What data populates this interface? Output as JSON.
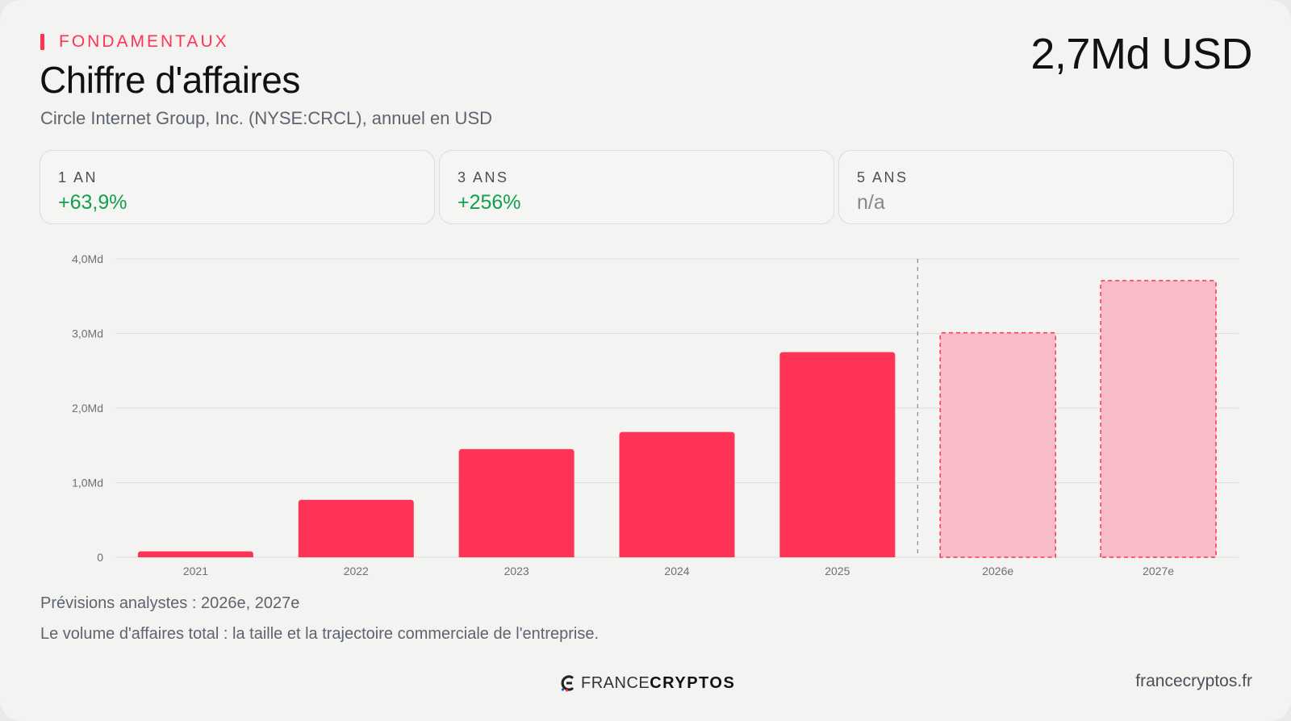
{
  "header": {
    "eyebrow": "FONDAMENTAUX",
    "title": "Chiffre d'affaires",
    "subtitle": "Circle Internet Group, Inc. (NYSE:CRCL), annuel en USD",
    "headline_value": "2,7Md USD"
  },
  "stats": [
    {
      "label": "1 AN",
      "value": "+63,9%"
    },
    {
      "label": "3 ANS",
      "value": "+256%"
    },
    {
      "label": "5 ANS",
      "value": "n/a"
    }
  ],
  "colors": {
    "accent": "#ff3355",
    "forecast_fill": "#f7bcc6",
    "positive": "#12a04a"
  },
  "chart_data": {
    "type": "bar",
    "categories": [
      "2021",
      "2022",
      "2023",
      "2024",
      "2025",
      "2026e",
      "2027e"
    ],
    "values": [
      0.08,
      0.77,
      1.45,
      1.68,
      2.75,
      3.01,
      3.71
    ],
    "forecast": [
      false,
      false,
      false,
      false,
      false,
      true,
      true
    ],
    "yticks": [
      "0",
      "1,0Md",
      "2,0Md",
      "3,0Md",
      "4,0Md"
    ],
    "ylim": [
      0,
      4
    ],
    "grid": true,
    "forecast_divider_after": "2025"
  },
  "footer": {
    "note_forecast": "Prévisions analystes : 2026e, 2027e",
    "note_description": "Le volume d'affaires total : la taille et la trajectoire commerciale de l'entreprise.",
    "logo_part1": "FRANCE",
    "logo_part2": "CRYPTOS",
    "site": "francecryptos.fr"
  },
  "icons": {
    "logo": "francecryptos-logo-icon"
  }
}
